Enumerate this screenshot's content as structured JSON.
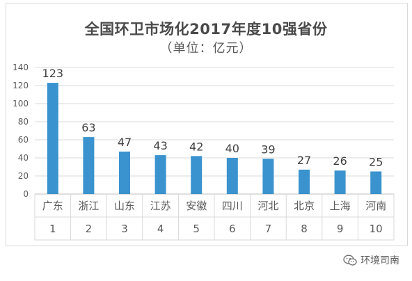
{
  "chart_data": {
    "type": "bar",
    "title": "全国环卫市场化2017年度10强省份",
    "subtitle": "（单位：亿元）",
    "categories": [
      "广东",
      "浙江",
      "山东",
      "江苏",
      "安徽",
      "四川",
      "河北",
      "北京",
      "上海",
      "河南"
    ],
    "ranks": [
      "1",
      "2",
      "3",
      "4",
      "5",
      "6",
      "7",
      "8",
      "9",
      "10"
    ],
    "values": [
      123,
      63,
      47,
      43,
      42,
      40,
      39,
      27,
      26,
      25
    ],
    "ylim": [
      0,
      140
    ],
    "yticks": [
      0,
      20,
      40,
      60,
      80,
      100,
      120,
      140
    ],
    "grid": true,
    "bar_color": "#3a93ce",
    "grid_color": "#d9d9d9",
    "text_color": "#595959"
  },
  "watermark": {
    "text": "环境司南",
    "icon": "wechat-icon"
  }
}
